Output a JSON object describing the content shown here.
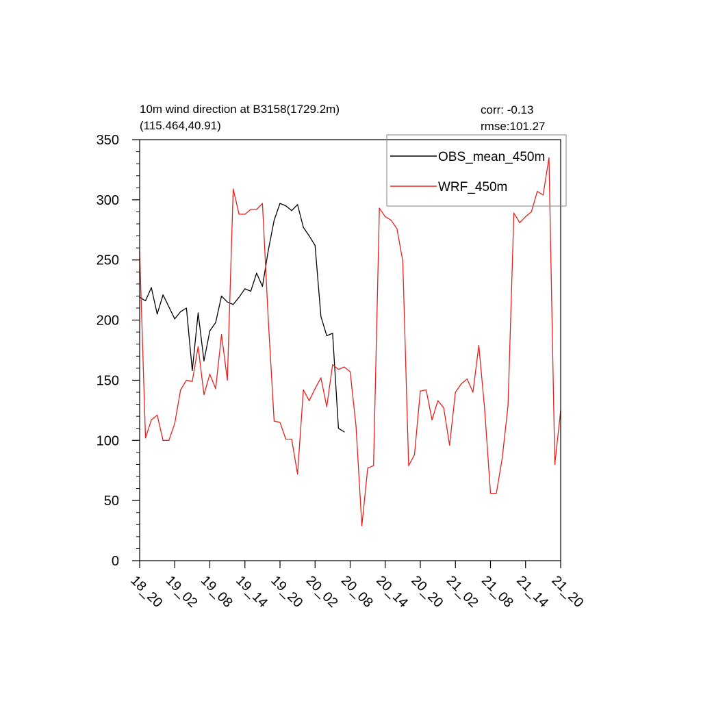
{
  "chart_data": {
    "type": "line",
    "title_line1": "10m wind direction at B3158(1729.2m)",
    "title_line2": "(115.464,40.91)",
    "corr_label": "corr: -0.13",
    "rmse_label": "rmse:101.27",
    "xlabel": "",
    "ylabel": "",
    "ylim": [
      0,
      350
    ],
    "xlim": [
      0,
      72
    ],
    "y_major_ticks": [
      0,
      50,
      100,
      150,
      200,
      250,
      300,
      350
    ],
    "y_tick_labels": [
      "0",
      "50",
      "100",
      "150",
      "200",
      "250",
      "300",
      "350"
    ],
    "x_tick_positions": [
      0,
      6,
      12,
      18,
      24,
      30,
      36,
      42,
      48,
      54,
      60,
      66,
      72
    ],
    "x_tick_labels": [
      "18_20",
      "19_02",
      "19_08",
      "19_14",
      "19_20",
      "20_02",
      "20_08",
      "20_14",
      "20_20",
      "21_02",
      "21_08",
      "21_14",
      "21_20"
    ],
    "legend_position": "top-right",
    "grid": false,
    "series": [
      {
        "name": "OBS_mean_450m",
        "color": "#000000",
        "x": [
          0,
          1,
          2,
          3,
          4,
          5,
          6,
          7,
          8,
          9,
          10,
          11,
          12,
          13,
          14,
          15,
          16,
          17,
          18,
          19,
          20,
          21,
          22,
          23,
          24,
          25,
          26,
          27,
          28,
          29,
          30,
          31,
          32,
          33,
          34,
          35
        ],
        "values": [
          219,
          216,
          227,
          205,
          221,
          211,
          201,
          207,
          210,
          158,
          206,
          166,
          191,
          198,
          220,
          215,
          213,
          219,
          226,
          224,
          239,
          228,
          258,
          283,
          297,
          295,
          291,
          296,
          277,
          270,
          262,
          203,
          187,
          189,
          110,
          107
        ]
      },
      {
        "name": "WRF_450m",
        "color": "#e8201c",
        "x": [
          0,
          1,
          2,
          3,
          4,
          5,
          6,
          7,
          8,
          9,
          10,
          11,
          12,
          13,
          14,
          15,
          16,
          17,
          18,
          19,
          20,
          21,
          22,
          23,
          24,
          25,
          26,
          27,
          28,
          29,
          30,
          31,
          32,
          33,
          34,
          35,
          36,
          37,
          38,
          39,
          40,
          41,
          42,
          43,
          44,
          45,
          46,
          47,
          48,
          49,
          50,
          51,
          52,
          53,
          54,
          55,
          56,
          57,
          58,
          59,
          60,
          61,
          62,
          63,
          64,
          65,
          66,
          67,
          68,
          69,
          70,
          71,
          72
        ],
        "values": [
          257,
          102,
          117,
          121,
          100,
          100,
          114,
          142,
          150,
          149,
          178,
          138,
          155,
          143,
          188,
          150,
          309,
          288,
          288,
          292,
          292,
          297,
          200,
          116,
          115,
          101,
          101,
          72,
          142,
          133,
          143,
          152,
          128,
          163,
          159,
          161,
          157,
          112,
          29,
          77,
          79,
          293,
          286,
          283,
          276,
          249,
          79,
          88,
          141,
          142,
          117,
          133,
          127,
          96,
          140,
          147,
          151,
          140,
          179,
          126,
          56,
          56,
          85,
          129,
          289,
          281,
          286,
          290,
          307,
          304,
          335,
          80,
          125
        ]
      }
    ]
  }
}
